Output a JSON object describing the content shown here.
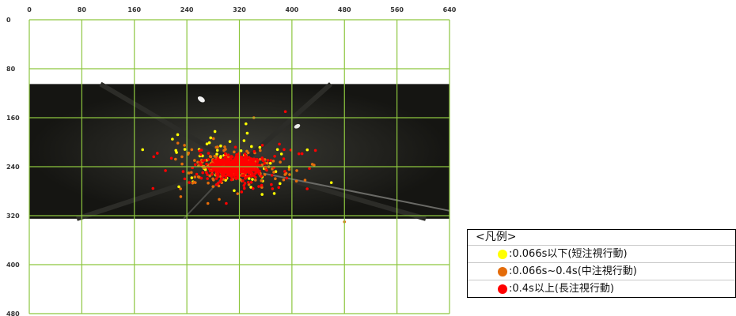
{
  "chart_data": {
    "type": "scatter",
    "xlim": [
      0,
      640
    ],
    "ylim": [
      0,
      480
    ],
    "y_inverted": true,
    "x_ticks": [
      0,
      80,
      160,
      240,
      320,
      400,
      480,
      560,
      640
    ],
    "y_ticks": [
      0,
      80,
      160,
      240,
      320,
      400,
      480
    ],
    "grid": true,
    "grid_color": "#8dc63f",
    "background_image_extent": {
      "x": [
        0,
        640
      ],
      "y": [
        105,
        325
      ]
    },
    "series": [
      {
        "name": ":0.066s以下(短注視行動)",
        "color": "#ffff00"
      },
      {
        "name": ":0.066s~0.4s(中注視行動)",
        "color": "#e46c0a"
      },
      {
        "name": ":0.4s以上(長注視行動)",
        "color": "#ff0000"
      }
    ],
    "cluster_center": [
      320,
      240
    ],
    "legend_title": "<凡例>",
    "legend_placement": "bottom-right"
  }
}
